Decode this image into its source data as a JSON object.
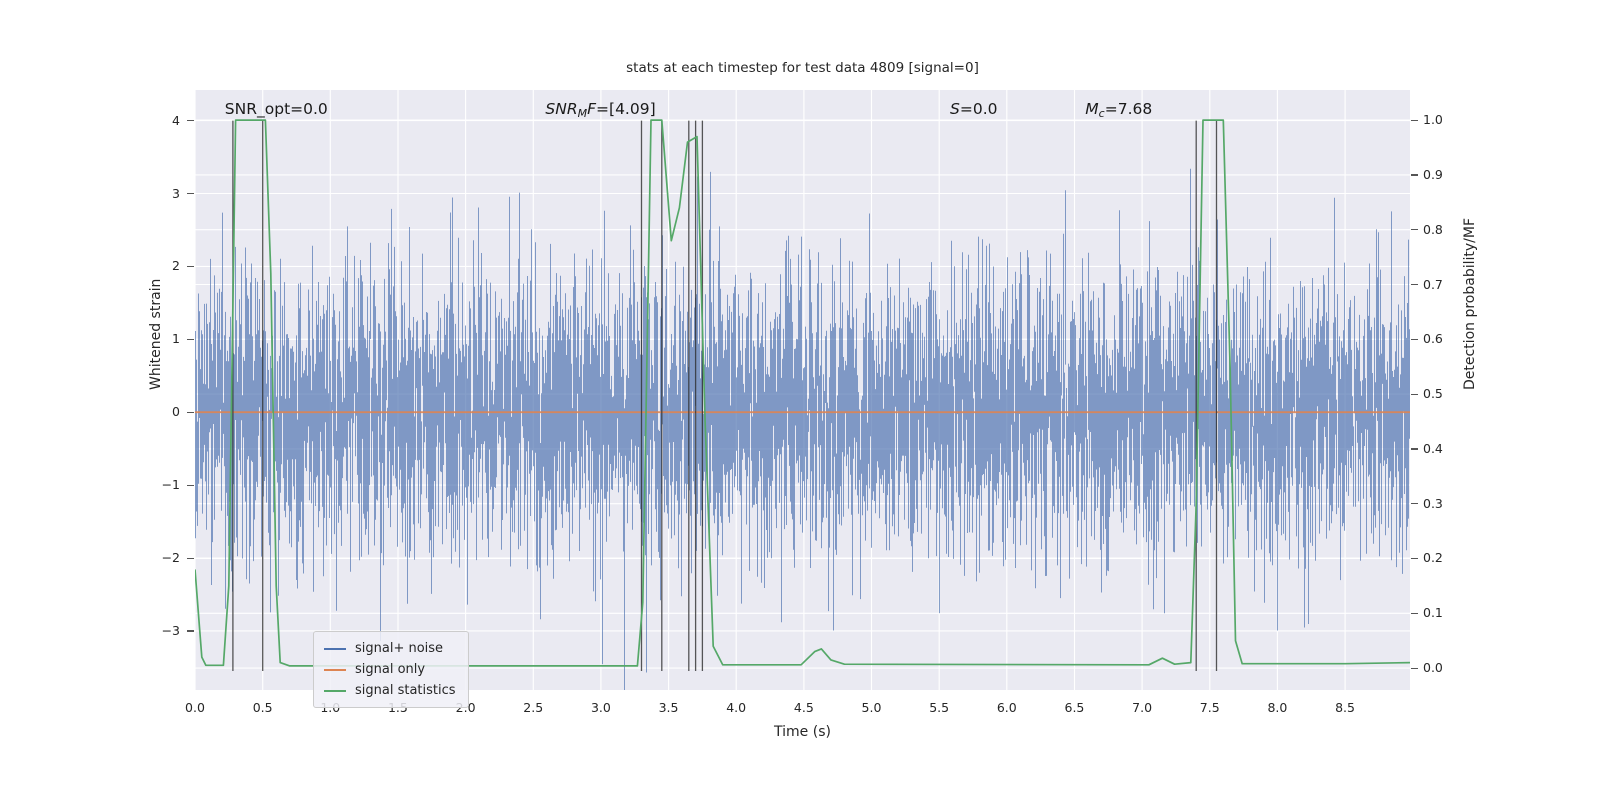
{
  "figure": {
    "bg": "#ffffff",
    "axes_bg": "#eaeaf2",
    "grid_color": "#ffffff",
    "text_color": "#262626"
  },
  "chart_data": {
    "type": "line",
    "title": "stats at each timestep for test data 4809 [signal=0]",
    "xlabel": "Time (s)",
    "ylabel_left": "Whitened strain",
    "ylabel_right": "Detection probability/MF",
    "xlim": [
      0,
      8.98
    ],
    "ylim_left": [
      -3.81,
      4.42
    ],
    "ylim_right": [
      -0.04,
      1.055
    ],
    "grid": true,
    "x_tick_vals": [
      0,
      0.5,
      1.0,
      1.5,
      2.0,
      2.5,
      3.0,
      3.5,
      4.0,
      4.5,
      5.0,
      5.5,
      6.0,
      6.5,
      7.0,
      7.5,
      8.0,
      8.5
    ],
    "x_tick_labels": [
      "0.0",
      "0.5",
      "1.0",
      "1.5",
      "2.0",
      "2.5",
      "3.0",
      "3.5",
      "4.0",
      "4.5",
      "5.0",
      "5.5",
      "6.0",
      "6.5",
      "7.0",
      "7.5",
      "8.0",
      "8.5"
    ],
    "y_left_vals": [
      -3,
      -2,
      -1,
      0,
      1,
      2,
      3,
      4
    ],
    "y_left_labels": [
      "−3",
      "−2",
      "−1",
      "0",
      "1",
      "2",
      "3",
      "4"
    ],
    "y_right_vals": [
      0,
      0.1,
      0.2,
      0.3,
      0.4,
      0.5,
      0.6,
      0.7,
      0.8,
      0.9,
      1.0
    ],
    "y_right_labels": [
      "0.0",
      "0.1",
      "0.2",
      "0.3",
      "0.4",
      "0.5",
      "0.6",
      "0.7",
      "0.8",
      "0.9",
      "1.0"
    ],
    "series": [
      {
        "name": "signal+ noise",
        "color": "#4C72B0",
        "kind": "noise",
        "axis": "left",
        "seed": 4809,
        "columns": 1215,
        "sigma": 0.95,
        "samples_per_column": 5,
        "opacity": 0.68
      },
      {
        "name": "signal only",
        "color": "#DD8452",
        "kind": "constant",
        "axis": "left",
        "value": 0,
        "opacity": 0.9
      },
      {
        "name": "signal statistics",
        "color": "#55A868",
        "kind": "keypoints",
        "axis": "right",
        "opacity": 1,
        "points": [
          [
            0.0,
            0.18
          ],
          [
            0.05,
            0.02
          ],
          [
            0.08,
            0.005
          ],
          [
            0.21,
            0.005
          ],
          [
            0.25,
            0.15
          ],
          [
            0.3,
            1.0
          ],
          [
            0.52,
            1.0
          ],
          [
            0.56,
            0.72
          ],
          [
            0.6,
            0.15
          ],
          [
            0.63,
            0.01
          ],
          [
            0.7,
            0.004
          ],
          [
            3.27,
            0.004
          ],
          [
            3.31,
            0.12
          ],
          [
            3.37,
            1.0
          ],
          [
            3.45,
            1.0
          ],
          [
            3.52,
            0.78
          ],
          [
            3.58,
            0.84
          ],
          [
            3.64,
            0.96
          ],
          [
            3.71,
            0.97
          ],
          [
            3.77,
            0.45
          ],
          [
            3.83,
            0.04
          ],
          [
            3.9,
            0.006
          ],
          [
            4.48,
            0.006
          ],
          [
            4.58,
            0.03
          ],
          [
            4.63,
            0.035
          ],
          [
            4.7,
            0.015
          ],
          [
            4.8,
            0.007
          ],
          [
            7.05,
            0.006
          ],
          [
            7.15,
            0.018
          ],
          [
            7.24,
            0.007
          ],
          [
            7.36,
            0.01
          ],
          [
            7.4,
            0.3
          ],
          [
            7.45,
            1.0
          ],
          [
            7.6,
            1.0
          ],
          [
            7.65,
            0.55
          ],
          [
            7.69,
            0.05
          ],
          [
            7.74,
            0.008
          ],
          [
            8.5,
            0.008
          ],
          [
            8.98,
            0.01
          ]
        ]
      }
    ],
    "event_markers": {
      "color": "#2e2e2e",
      "opacity": 0.8,
      "ymin": -3.55,
      "ymax": 4.0,
      "x": [
        0.28,
        0.5,
        3.3,
        3.45,
        3.65,
        3.7,
        3.75,
        7.4,
        7.55
      ]
    },
    "annotations": [
      {
        "x": 0.22,
        "parts": [
          {
            "t": "SNR_opt=0.0",
            "i": false,
            "sub": false
          }
        ]
      },
      {
        "x": 2.59,
        "parts": [
          {
            "t": "SNR",
            "i": true,
            "sub": false
          },
          {
            "t": "M",
            "i": true,
            "sub": true
          },
          {
            "t": "F",
            "i": true,
            "sub": false
          },
          {
            "t": "=[4.09]",
            "i": false,
            "sub": false
          }
        ]
      },
      {
        "x": 5.58,
        "parts": [
          {
            "t": "S",
            "i": true,
            "sub": false
          },
          {
            "t": "=0.0",
            "i": false,
            "sub": false
          }
        ]
      },
      {
        "x": 6.58,
        "parts": [
          {
            "t": "M",
            "i": true,
            "sub": false
          },
          {
            "t": "c",
            "i": true,
            "sub": true
          },
          {
            "t": "=7.68",
            "i": false,
            "sub": false
          }
        ]
      }
    ],
    "legend": {
      "position": "lower-left",
      "items": [
        {
          "label": "signal+ noise",
          "color": "#4C72B0"
        },
        {
          "label": "signal only",
          "color": "#DD8452"
        },
        {
          "label": "signal statistics",
          "color": "#55A868"
        }
      ]
    }
  }
}
